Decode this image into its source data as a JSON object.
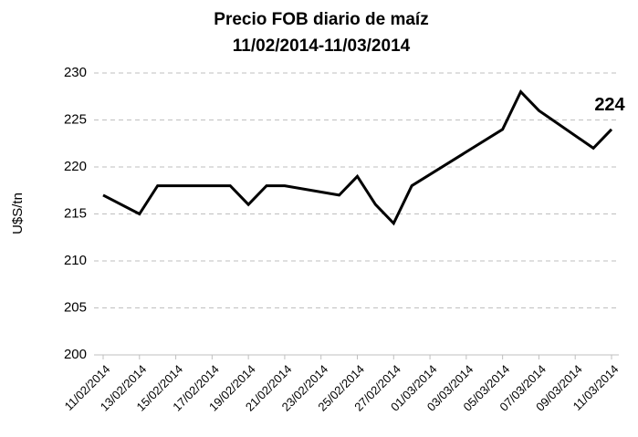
{
  "chart_data": {
    "type": "line",
    "title": [
      "Precio FOB diario de maíz",
      "11/02/2014-11/03/2014"
    ],
    "y_label": "U$S/tn",
    "x": [
      "11/02/2014",
      "13/02/2014",
      "14/02/2014",
      "18/02/2014",
      "19/02/2014",
      "20/02/2014",
      "21/02/2014",
      "24/02/2014",
      "25/02/2014",
      "26/02/2014",
      "27/02/2014",
      "28/02/2014",
      "05/03/2014",
      "06/03/2014",
      "07/03/2014",
      "10/03/2014",
      "11/03/2014"
    ],
    "series": [
      {
        "name": "Precio FOB",
        "color": "#000000",
        "values": [
          217,
          215,
          218,
          218,
          216,
          218,
          218,
          217,
          219,
          216,
          214,
          218,
          224,
          228,
          226,
          222,
          224
        ]
      }
    ],
    "data_labels": "last",
    "xlim": [
      "11/02/2014",
      "11/03/2014"
    ],
    "xticks": [
      "11/02/2014",
      "13/02/2014",
      "15/02/2014",
      "17/02/2014",
      "19/02/2014",
      "21/02/2014",
      "23/02/2014",
      "25/02/2014",
      "27/02/2014",
      "01/03/2014",
      "03/03/2014",
      "05/03/2014",
      "07/03/2014",
      "09/03/2014",
      "11/03/2014"
    ],
    "ylim": [
      200,
      230
    ],
    "yticks": [
      200,
      205,
      210,
      215,
      220,
      225,
      230
    ],
    "grid": true
  }
}
